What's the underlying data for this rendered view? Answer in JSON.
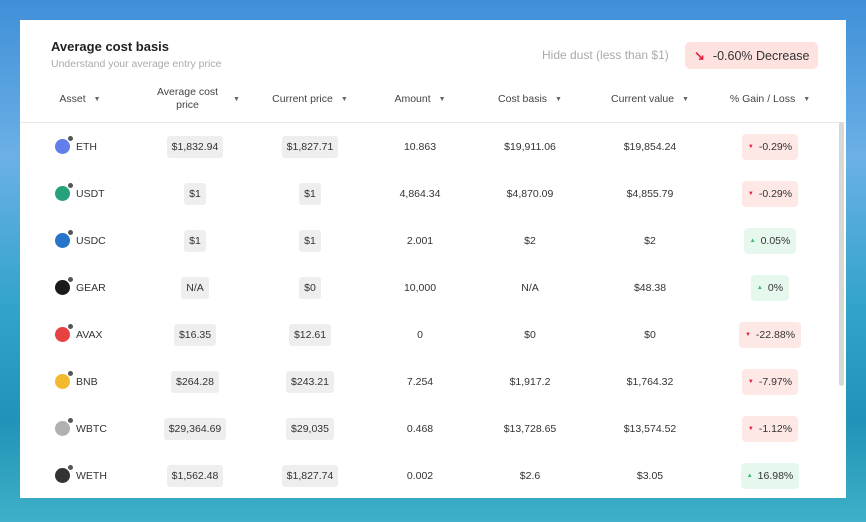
{
  "header": {
    "title": "Average cost basis",
    "subtitle": "Understand your average entry price",
    "hide_dust": "Hide dust (less than $1)",
    "change_badge": "-0.60% Decrease",
    "change_color": "#e5223f"
  },
  "columns": [
    "Asset",
    "Average cost price",
    "Current price",
    "Amount",
    "Cost basis",
    "Current value",
    "% Gain / Loss"
  ],
  "rows": [
    {
      "asset": "ETH",
      "avg": "$1,832.94",
      "cur": "$1,827.71",
      "amount": "10.863",
      "cost": "$19,911.06",
      "value": "$19,854.24",
      "gain": "-0.29%",
      "dir": "neg",
      "color": "#627eea"
    },
    {
      "asset": "USDT",
      "avg": "$1",
      "cur": "$1",
      "amount": "4,864.34",
      "cost": "$4,870.09",
      "value": "$4,855.79",
      "gain": "-0.29%",
      "dir": "neg",
      "color": "#26a17b"
    },
    {
      "asset": "USDC",
      "avg": "$1",
      "cur": "$1",
      "amount": "2.001",
      "cost": "$2",
      "value": "$2",
      "gain": "0.05%",
      "dir": "pos",
      "color": "#2775ca"
    },
    {
      "asset": "GEAR",
      "avg": "N/A",
      "cur": "$0",
      "amount": "10,000",
      "cost": "N/A",
      "value": "$48.38",
      "gain": "0%",
      "dir": "pos",
      "color": "#1a1a1a"
    },
    {
      "asset": "AVAX",
      "avg": "$16.35",
      "cur": "$12.61",
      "amount": "0",
      "cost": "$0",
      "value": "$0",
      "gain": "-22.88%",
      "dir": "neg",
      "color": "#e84142"
    },
    {
      "asset": "BNB",
      "avg": "$264.28",
      "cur": "$243.21",
      "amount": "7.254",
      "cost": "$1,917.2",
      "value": "$1,764.32",
      "gain": "-7.97%",
      "dir": "neg",
      "color": "#f3ba2f"
    },
    {
      "asset": "WBTC",
      "avg": "$29,364.69",
      "cur": "$29,035",
      "amount": "0.468",
      "cost": "$13,728.65",
      "value": "$13,574.52",
      "gain": "-1.12%",
      "dir": "neg",
      "color": "#b0b0b0"
    },
    {
      "asset": "WETH",
      "avg": "$1,562.48",
      "cur": "$1,827.74",
      "amount": "0.002",
      "cost": "$2.6",
      "value": "$3.05",
      "gain": "16.98%",
      "dir": "pos",
      "color": "#333333"
    }
  ]
}
